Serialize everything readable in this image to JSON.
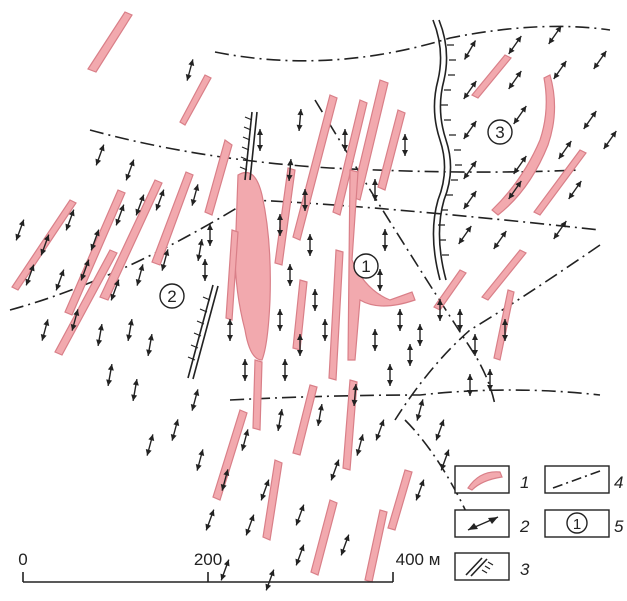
{
  "map": {
    "zones": [
      {
        "label": "1"
      },
      {
        "label": "2"
      },
      {
        "label": "3"
      }
    ]
  },
  "legend": {
    "items": [
      {
        "number": "1",
        "symbol": "vein"
      },
      {
        "number": "2",
        "symbol": "stress-arrow"
      },
      {
        "number": "3",
        "symbol": "dike"
      },
      {
        "number": "4",
        "symbol": "fault"
      },
      {
        "number": "5",
        "symbol": "zone-number",
        "symbol_text": "1"
      }
    ]
  },
  "scale_bar": {
    "ticks": [
      "0",
      "200",
      "400 м"
    ]
  },
  "colors": {
    "vein_fill": "#f2a9ae",
    "vein_stroke": "#d97f88",
    "ink": "#222222"
  }
}
